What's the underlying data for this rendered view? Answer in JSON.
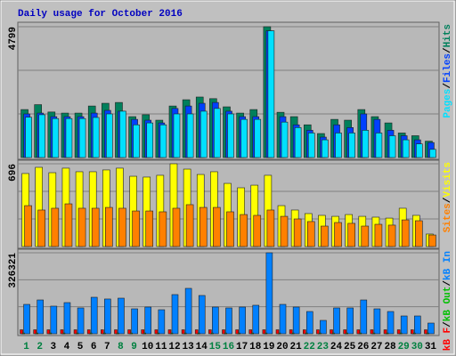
{
  "title": "Daily usage for October 2016",
  "legend_separator": "/",
  "chart_data": [
    {
      "type": "bar",
      "ylim": [
        0,
        4799
      ],
      "yticks": [
        4799
      ],
      "series": [
        {
          "name": "Hits",
          "color": "#00805c",
          "values": [
            1760,
            1940,
            1670,
            1630,
            1630,
            1890,
            1990,
            2020,
            1500,
            1570,
            1370,
            1890,
            2120,
            2220,
            2160,
            1860,
            1630,
            1760,
            4799,
            1660,
            1500,
            1200,
            880,
            1400,
            1370,
            1760,
            1500,
            1270,
            900,
            800,
            600
          ]
        },
        {
          "name": "Files",
          "color": "#0040ff",
          "values": [
            1600,
            1630,
            1500,
            1500,
            1500,
            1630,
            1730,
            1700,
            1400,
            1370,
            1270,
            1800,
            1890,
            1990,
            2020,
            1700,
            1500,
            1500,
            4650,
            1500,
            1200,
            1000,
            750,
            1200,
            1100,
            1600,
            1400,
            1000,
            800,
            650,
            550
          ]
        },
        {
          "name": "Pages",
          "color": "#00e0ff",
          "values": [
            1480,
            1570,
            1430,
            1430,
            1430,
            1470,
            1600,
            1700,
            1200,
            1270,
            1200,
            1600,
            1600,
            1700,
            1800,
            1600,
            1400,
            1400,
            4650,
            1300,
            1100,
            900,
            650,
            900,
            900,
            1000,
            900,
            800,
            650,
            500,
            300
          ]
        }
      ]
    },
    {
      "type": "bar",
      "ylim": [
        0,
        696
      ],
      "yticks": [
        696
      ],
      "series": [
        {
          "name": "Visits",
          "color": "#ffff00",
          "values": [
            614,
            666,
            621,
            659,
            629,
            629,
            644,
            659,
            591,
            584,
            599,
            696,
            651,
            606,
            629,
            531,
            494,
            516,
            599,
            344,
            307,
            277,
            262,
            254,
            269,
            254,
            247,
            239,
            322,
            262,
            105
          ]
        },
        {
          "name": "Sites",
          "color": "#ff8000",
          "values": [
            344,
            307,
            322,
            359,
            322,
            322,
            329,
            322,
            299,
            299,
            292,
            322,
            352,
            329,
            329,
            292,
            269,
            262,
            307,
            254,
            232,
            210,
            172,
            202,
            195,
            172,
            187,
            180,
            224,
            217,
            97
          ]
        }
      ]
    },
    {
      "type": "bar",
      "ylim": [
        0,
        326321
      ],
      "yticks": [
        326321
      ],
      "categories": [
        "1",
        "2",
        "3",
        "4",
        "5",
        "6",
        "7",
        "8",
        "9",
        "10",
        "11",
        "12",
        "13",
        "14",
        "15",
        "16",
        "17",
        "18",
        "19",
        "20",
        "21",
        "22",
        "23",
        "24",
        "25",
        "26",
        "27",
        "28",
        "29",
        "30",
        "31"
      ],
      "category_colors": [
        "#008040",
        "#008040",
        "#000000",
        "#000000",
        "#000000",
        "#000000",
        "#000000",
        "#008040",
        "#008040",
        "#000000",
        "#000000",
        "#000000",
        "#000000",
        "#000000",
        "#008040",
        "#008040",
        "#000000",
        "#000000",
        "#000000",
        "#000000",
        "#000000",
        "#008040",
        "#008040",
        "#000000",
        "#000000",
        "#000000",
        "#000000",
        "#000000",
        "#008040",
        "#008040",
        "#000000"
      ],
      "series": [
        {
          "name": "kB In",
          "color": "#0080ff",
          "values": [
            118300,
            136200,
            111200,
            125500,
            104000,
            147000,
            140000,
            143400,
            100400,
            107600,
            96800,
            157800,
            182900,
            154200,
            107600,
            104000,
            107600,
            114800,
            326321,
            118300,
            107600,
            89600,
            53800,
            104000,
            104000,
            136200,
            100400,
            89600,
            71700,
            71700,
            43000
          ]
        },
        {
          "name": "kB Out",
          "color": "#00c000",
          "values": [
            3000,
            3000,
            3000,
            3000,
            3000,
            3000,
            3000,
            3000,
            3000,
            3000,
            3000,
            3000,
            3000,
            3000,
            3000,
            3000,
            3000,
            3000,
            3000,
            3000,
            3000,
            3000,
            3000,
            3000,
            3000,
            3000,
            3000,
            3000,
            3000,
            3000,
            3000
          ]
        },
        {
          "name": "kB F",
          "color": "#ff0000",
          "values": [
            16000,
            16000,
            16000,
            16000,
            16000,
            16000,
            16000,
            16000,
            16000,
            16000,
            16000,
            16000,
            16000,
            16000,
            16000,
            16000,
            16000,
            16000,
            16000,
            16000,
            16000,
            16000,
            16000,
            16000,
            16000,
            16000,
            16000,
            16000,
            16000,
            16000,
            16000
          ]
        }
      ]
    }
  ]
}
